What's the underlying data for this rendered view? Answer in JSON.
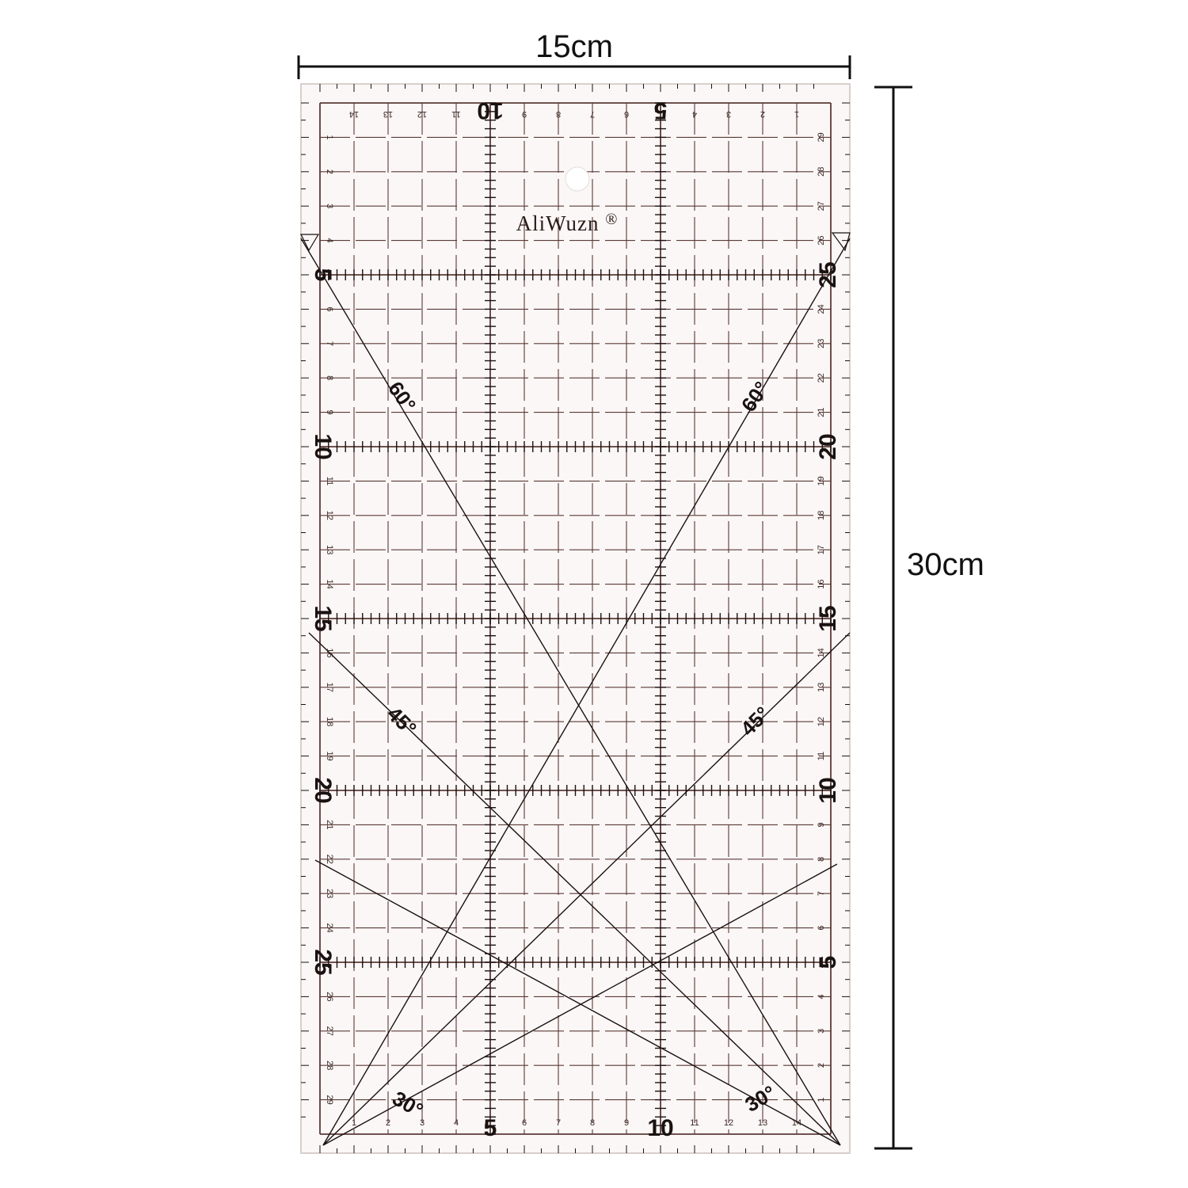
{
  "dimensions": {
    "width_label": "15cm",
    "height_label": "30cm"
  },
  "brand": {
    "name": "AliWuzn",
    "mark": "®"
  },
  "ruler": {
    "width_cm": 15,
    "length_cm": 30,
    "top_small_numbers": [
      "14",
      "13",
      "12",
      "11",
      "9",
      "8",
      "7",
      "6",
      "4",
      "3",
      "2",
      "1"
    ],
    "top_big_numbers": [
      "10",
      "5"
    ],
    "bottom_small_numbers": [
      "1",
      "2",
      "3",
      "4",
      "6",
      "7",
      "8",
      "9",
      "11",
      "12",
      "13",
      "14"
    ],
    "bottom_big_numbers": [
      "5",
      "10"
    ],
    "left_small_numbers": [
      "1",
      "2",
      "3",
      "4",
      "6",
      "7",
      "8",
      "9",
      "11",
      "12",
      "13",
      "14",
      "16",
      "17",
      "18",
      "19",
      "21",
      "22",
      "23",
      "24",
      "26",
      "27",
      "28",
      "29"
    ],
    "left_big_numbers": [
      "5",
      "10",
      "15",
      "20",
      "25"
    ],
    "right_small_numbers": [
      "29",
      "28",
      "27",
      "26",
      "24",
      "23",
      "22",
      "21",
      "19",
      "18",
      "17",
      "16",
      "14",
      "13",
      "12",
      "11",
      "9",
      "8",
      "7",
      "6",
      "4",
      "3",
      "2",
      "1"
    ],
    "right_big_numbers": [
      "25",
      "20",
      "15",
      "10",
      "5"
    ],
    "angle_labels": [
      {
        "text": "60°",
        "side": "left"
      },
      {
        "text": "60°",
        "side": "right"
      },
      {
        "text": "45°",
        "side": "left"
      },
      {
        "text": "45°",
        "side": "right"
      },
      {
        "text": "30°",
        "side": "left"
      },
      {
        "text": "30°",
        "side": "right"
      }
    ]
  },
  "colors": {
    "ruler_fill": "#fbf7f6",
    "line": "#5a3a36",
    "dark": "#1a1210",
    "edge": "#d8cfcc"
  }
}
